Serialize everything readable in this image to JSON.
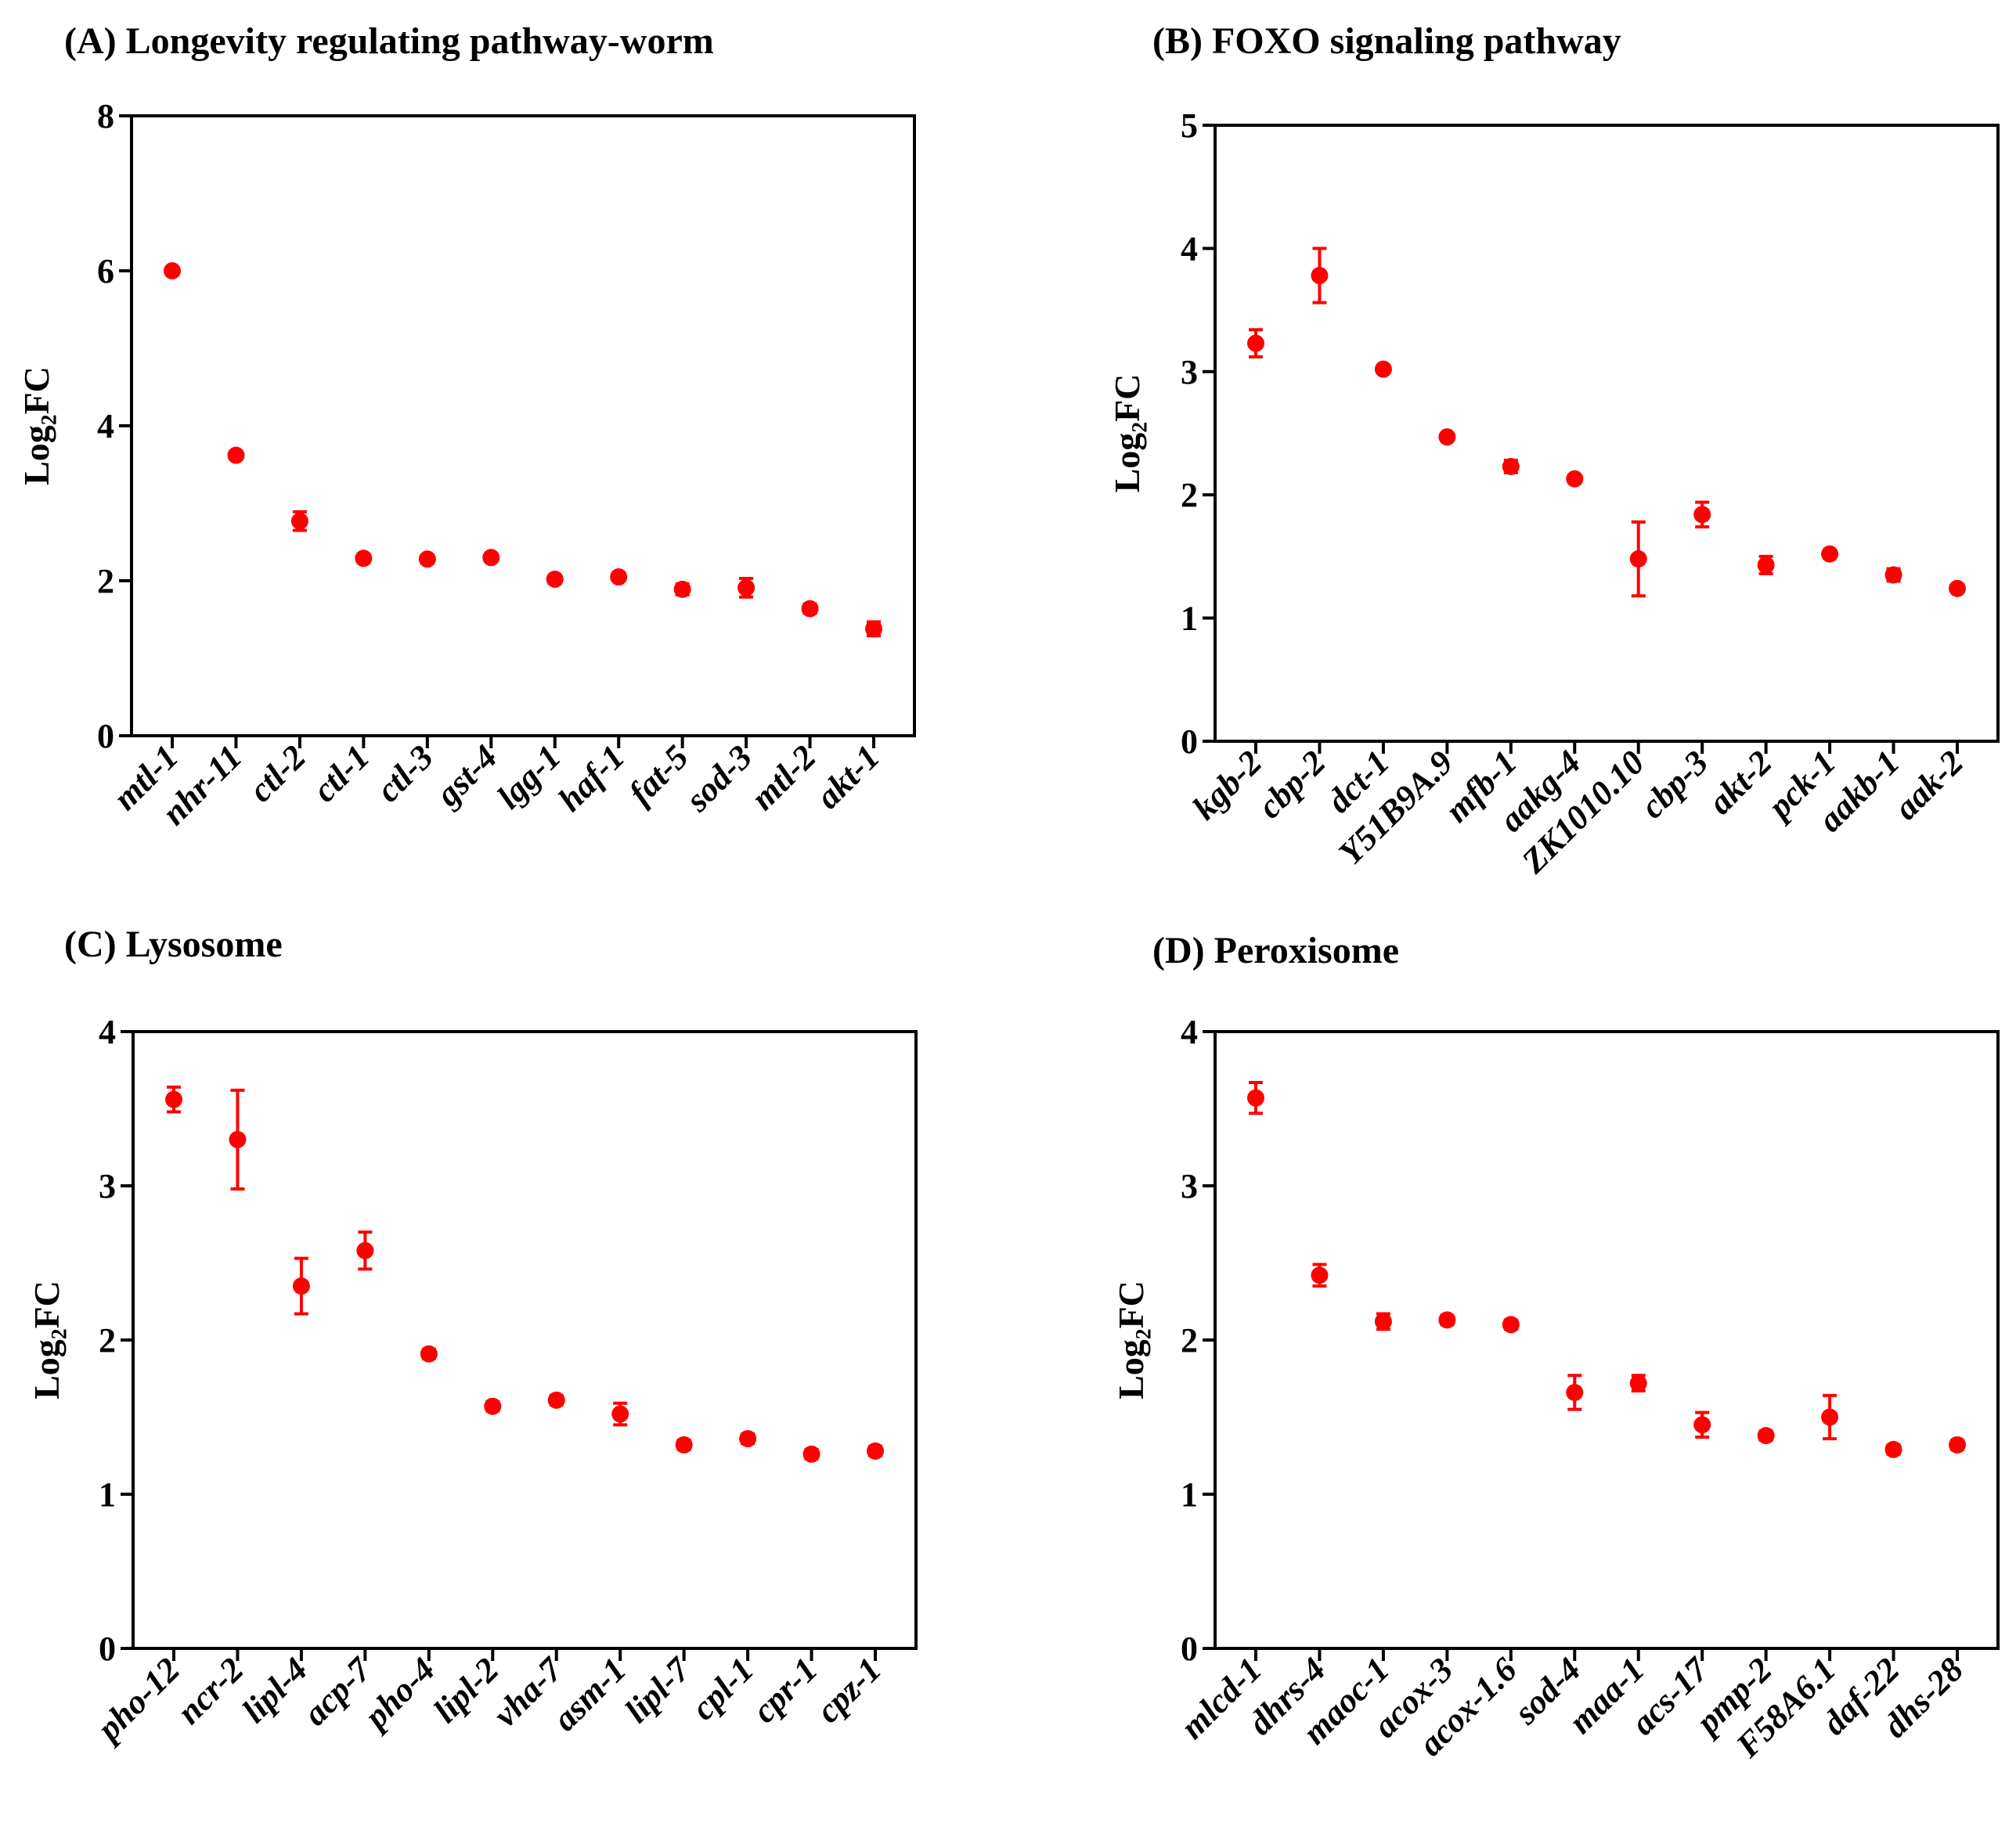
{
  "figure": {
    "marker_color": "#ff0000",
    "y_axis_label": "Log₂FC"
  },
  "chart_data": [
    {
      "type": "scatter",
      "title": "(A) Longevity regulating pathway-worm",
      "ylabel": "Log₂FC",
      "ylim": [
        0,
        8
      ],
      "yticks": [
        0,
        2,
        4,
        6,
        8
      ],
      "categories": [
        "mtl-1",
        "nhr-11",
        "ctl-2",
        "ctl-1",
        "ctl-3",
        "gst-4",
        "lgg-1",
        "haf-1",
        "fat-5",
        "sod-3",
        "mtl-2",
        "akt-1"
      ],
      "values": [
        6.0,
        3.62,
        2.77,
        2.29,
        2.28,
        2.3,
        2.02,
        2.05,
        1.89,
        1.91,
        1.64,
        1.38
      ],
      "errors": [
        0.03,
        0.05,
        0.12,
        0.05,
        0.05,
        0.05,
        0.05,
        0.04,
        0.07,
        0.12,
        0.06,
        0.09
      ]
    },
    {
      "type": "scatter",
      "title": "(B) FOXO signaling pathway",
      "ylabel": "Log₂FC",
      "ylim": [
        0,
        5
      ],
      "yticks": [
        0,
        1,
        2,
        3,
        4,
        5
      ],
      "categories": [
        "kgb-2",
        "cbp-2",
        "dct-1",
        "Y51B9A.9",
        "mfb-1",
        "aakg-4",
        "ZK1010.10",
        "cbp-3",
        "akt-2",
        "pck-1",
        "aakb-1",
        "aak-2"
      ],
      "values": [
        3.23,
        3.78,
        3.02,
        2.47,
        2.23,
        2.13,
        1.48,
        1.84,
        1.43,
        1.52,
        1.35,
        1.24
      ],
      "errors": [
        0.11,
        0.22,
        0.03,
        0.03,
        0.05,
        0.03,
        0.3,
        0.1,
        0.07,
        0.03,
        0.05,
        0.03
      ]
    },
    {
      "type": "scatter",
      "title": "(C) Lysosome",
      "ylabel": "Log₂FC",
      "ylim": [
        0,
        4
      ],
      "yticks": [
        0,
        1,
        2,
        3,
        4
      ],
      "categories": [
        "pho-12",
        "ncr-2",
        "lipl-4",
        "acp-7",
        "pho-4",
        "lipl-2",
        "vha-7",
        "asm-1",
        "lipl-7",
        "cpl-1",
        "cpr-1",
        "cpz-1"
      ],
      "values": [
        3.56,
        3.3,
        2.35,
        2.58,
        1.91,
        1.57,
        1.61,
        1.52,
        1.32,
        1.36,
        1.26,
        1.28
      ],
      "errors": [
        0.08,
        0.32,
        0.18,
        0.12,
        0.03,
        0.03,
        0.03,
        0.07,
        0.03,
        0.03,
        0.03,
        0.03
      ]
    },
    {
      "type": "scatter",
      "title": "(D) Peroxisome",
      "ylabel": "Log₂FC",
      "ylim": [
        0,
        4
      ],
      "yticks": [
        0,
        1,
        2,
        3,
        4
      ],
      "categories": [
        "mlcd-1",
        "dhrs-4",
        "maoc-1",
        "acox-3",
        "acox-1.6",
        "sod-4",
        "maa-1",
        "acs-17",
        "pmp-2",
        "F58A6.1",
        "daf-22",
        "dhs-28"
      ],
      "values": [
        3.57,
        2.42,
        2.12,
        2.13,
        2.1,
        1.66,
        1.72,
        1.45,
        1.38,
        1.5,
        1.29,
        1.32
      ],
      "errors": [
        0.1,
        0.07,
        0.05,
        0.03,
        0.03,
        0.11,
        0.05,
        0.08,
        0.03,
        0.14,
        0.03,
        0.03
      ]
    }
  ]
}
